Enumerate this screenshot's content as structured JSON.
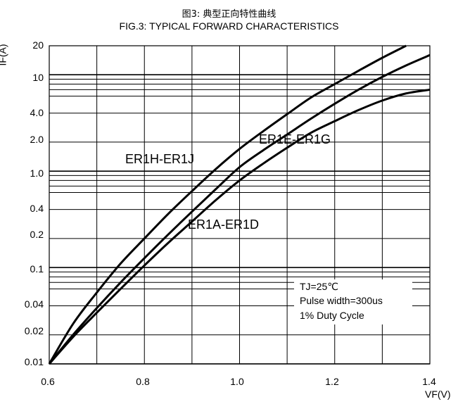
{
  "chart_data": {
    "type": "line",
    "title": "图3: 典型正向特性曲线",
    "subtitle": "FIG.3: TYPICAL FORWARD CHARACTERISTICS",
    "xlabel": "VF(V)",
    "ylabel": "IF(A)",
    "xlim": [
      0.6,
      1.4
    ],
    "ylim": [
      0.01,
      20
    ],
    "yscale": "log",
    "grid": true,
    "x_ticks": [
      "0.6",
      "0.8",
      "1.0",
      "1.2",
      "1.4"
    ],
    "y_ticks": [
      "0.01",
      "0.02",
      "0.04",
      "0.1",
      "0.2",
      "0.4",
      "1.0",
      "2.0",
      "4.0",
      "10",
      "20"
    ],
    "series": [
      {
        "name": "ER1H-ER1J",
        "x": [
          0.6,
          0.65,
          0.7,
          0.75,
          0.8,
          0.85,
          0.9,
          0.95,
          1.0,
          1.05,
          1.1,
          1.15,
          1.2,
          1.25,
          1.3,
          1.35
        ],
        "y": [
          0.01,
          0.026,
          0.055,
          0.11,
          0.2,
          0.36,
          0.62,
          1.05,
          1.7,
          2.6,
          3.9,
          5.8,
          8.0,
          11.0,
          15.0,
          20.0
        ]
      },
      {
        "name": "ER1E-ER1G",
        "x": [
          0.6,
          0.65,
          0.7,
          0.75,
          0.8,
          0.85,
          0.9,
          0.95,
          1.0,
          1.05,
          1.1,
          1.15,
          1.2,
          1.25,
          1.3,
          1.35,
          1.4
        ],
        "y": [
          0.01,
          0.02,
          0.038,
          0.07,
          0.125,
          0.22,
          0.38,
          0.65,
          1.1,
          1.65,
          2.4,
          3.5,
          5.0,
          7.0,
          9.5,
          12.5,
          16.0
        ]
      },
      {
        "name": "ER1A-ER1D",
        "x": [
          0.6,
          0.65,
          0.7,
          0.75,
          0.8,
          0.85,
          0.9,
          0.95,
          1.0,
          1.05,
          1.1,
          1.15,
          1.2,
          1.25,
          1.3,
          1.35,
          1.4
        ],
        "y": [
          0.01,
          0.019,
          0.034,
          0.06,
          0.105,
          0.18,
          0.3,
          0.5,
          0.8,
          1.2,
          1.75,
          2.5,
          3.3,
          4.3,
          5.4,
          6.4,
          7.0
        ]
      }
    ],
    "annotations": [
      "TJ=25℃",
      "Pulse width=300us",
      "1% Duty Cycle"
    ]
  }
}
